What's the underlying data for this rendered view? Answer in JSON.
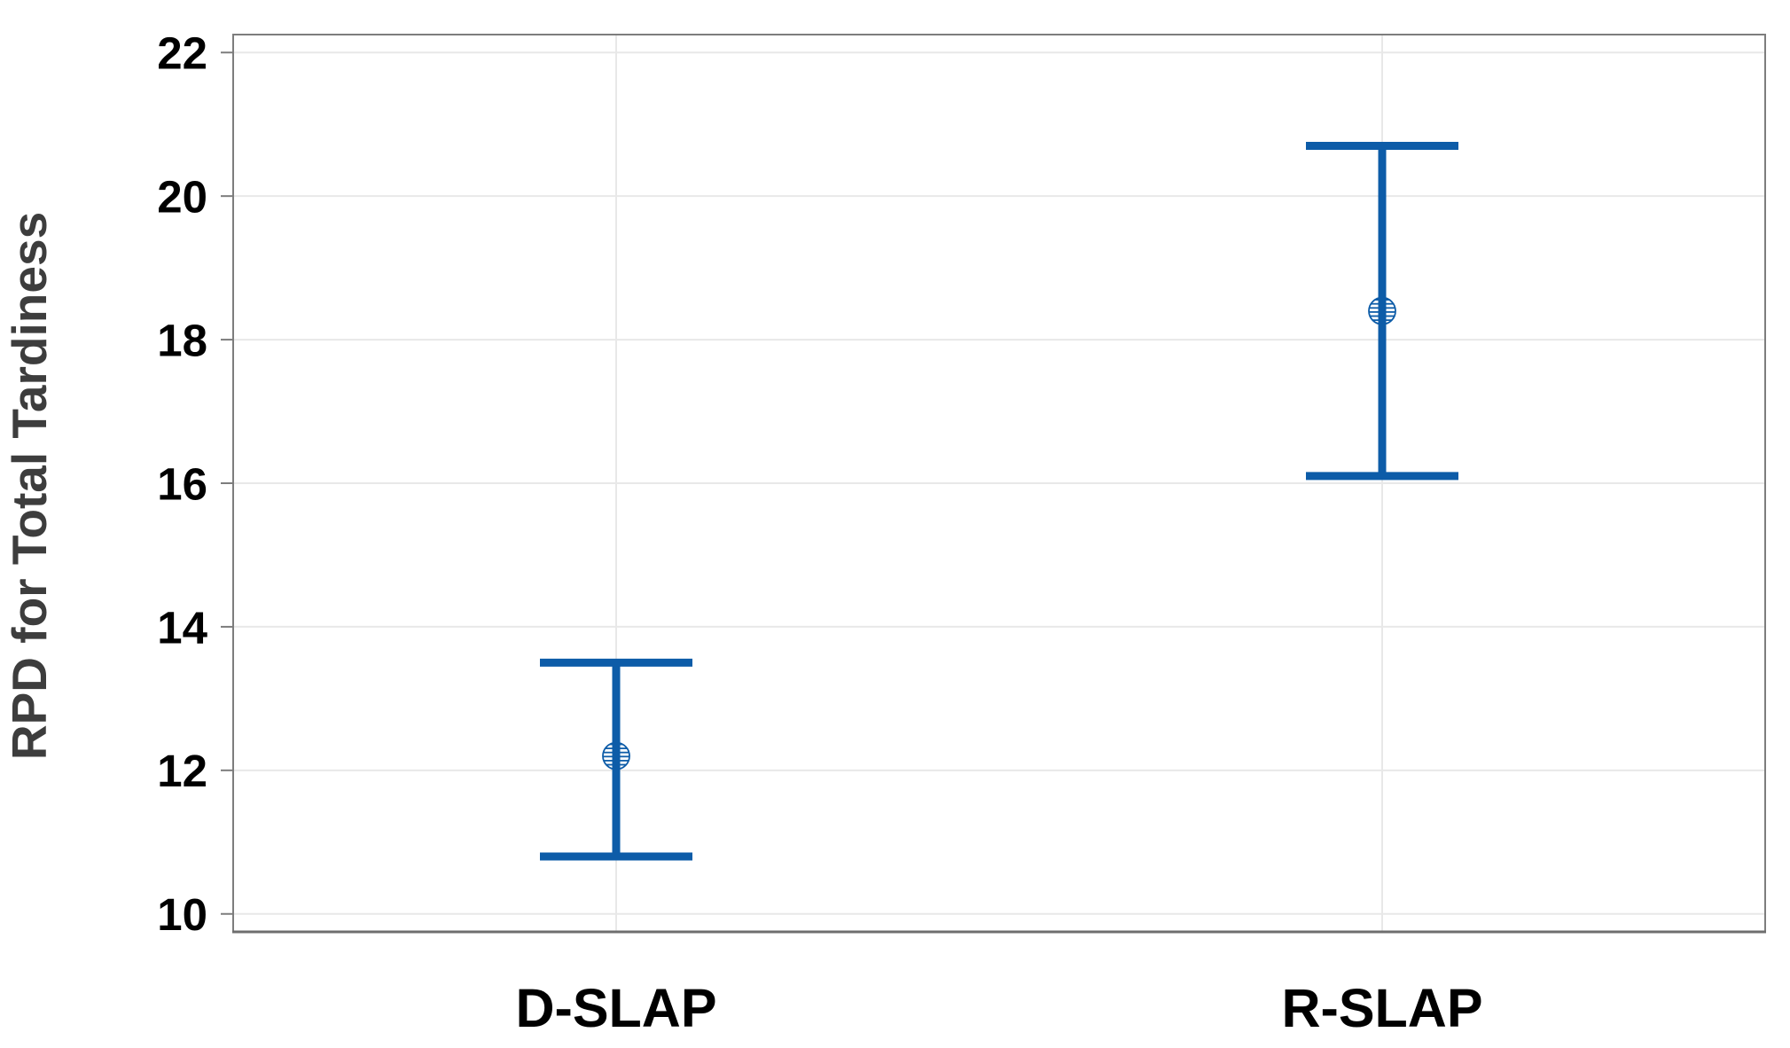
{
  "chart_data": {
    "type": "scatter",
    "subtype": "interval-plot-with-error-bars",
    "title": "",
    "xlabel": "",
    "ylabel": "RPD for Total Tardiness",
    "categories": [
      "D-SLAP",
      "R-SLAP"
    ],
    "series": [
      {
        "name": "D-SLAP",
        "mean": 12.2,
        "ci_low": 10.8,
        "ci_high": 13.5
      },
      {
        "name": "R-SLAP",
        "mean": 18.4,
        "ci_low": 16.1,
        "ci_high": 20.7
      }
    ],
    "yticks": [
      10,
      12,
      14,
      16,
      18,
      20,
      22
    ],
    "ylim": [
      9.75,
      22.25
    ],
    "grid": true,
    "legend": false,
    "marker": "hatched-circle",
    "colors": {
      "interval": "#0d5ca8",
      "grid": "#e8e8e8",
      "frame": "#7d7d7d",
      "axis_bottom": "#6e6e6e",
      "tick_label": "#000000",
      "category_label": "#000000",
      "axis_title": "#3d3d3d",
      "background": "#ffffff"
    }
  }
}
